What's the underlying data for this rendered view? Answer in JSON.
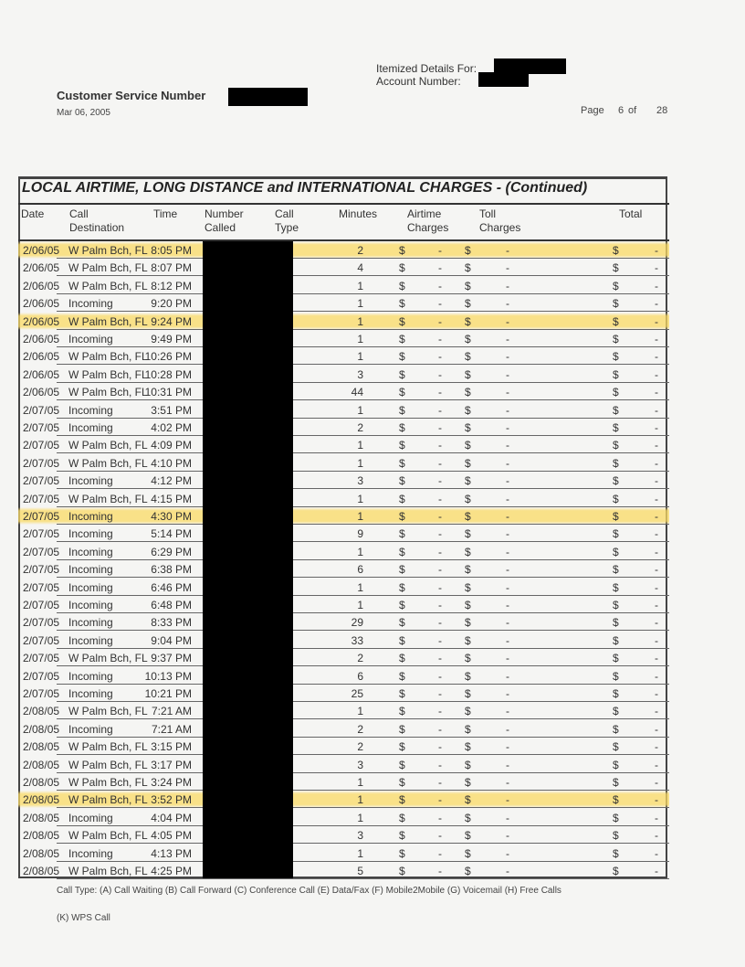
{
  "header": {
    "itemized_label": "Itemized Details For:",
    "account_label": "Account Number:",
    "customer_service_label": "Customer Service Number",
    "date": "Mar 06, 2005",
    "page_label": "Page",
    "page_number": "6",
    "page_of": "of",
    "page_total": "28"
  },
  "section": {
    "title": "LOCAL AIRTIME, LONG DISTANCE and INTERNATIONAL CHARGES  - (Continued)",
    "columns": {
      "date": "Date",
      "dest1": "Call",
      "dest2": "Destination",
      "time": "Time",
      "num1": "Number",
      "num2": "Called",
      "type1": "Call",
      "type2": "Type",
      "minutes": "Minutes",
      "air1": "Airtime",
      "air2": "Charges",
      "toll1": "Toll",
      "toll2": "Charges",
      "total": "Total"
    },
    "currency": "$",
    "dash": "-",
    "highlight_color": "#f9d965",
    "rows": [
      {
        "date": "2/06/05",
        "dest": "W Palm Bch, FL",
        "time": "8:05 PM",
        "minutes": "2",
        "highlighted": true
      },
      {
        "date": "2/06/05",
        "dest": "W Palm Bch, FL",
        "time": "8:07 PM",
        "minutes": "4"
      },
      {
        "date": "2/06/05",
        "dest": "W Palm Bch, FL",
        "time": "8:12 PM",
        "minutes": "1"
      },
      {
        "date": "2/06/05",
        "dest": "Incoming",
        "time": "9:20 PM",
        "minutes": "1"
      },
      {
        "date": "2/06/05",
        "dest": "W Palm Bch, FL",
        "time": "9:24 PM",
        "minutes": "1",
        "highlighted": true
      },
      {
        "date": "2/06/05",
        "dest": "Incoming",
        "time": "9:49 PM",
        "minutes": "1"
      },
      {
        "date": "2/06/05",
        "dest": "W Palm Bch, FL",
        "time": "10:26 PM",
        "minutes": "1"
      },
      {
        "date": "2/06/05",
        "dest": "W Palm Bch, FL",
        "time": "10:28 PM",
        "minutes": "3"
      },
      {
        "date": "2/06/05",
        "dest": "W Palm Bch, FL",
        "time": "10:31 PM",
        "minutes": "44"
      },
      {
        "date": "2/07/05",
        "dest": "Incoming",
        "time": "3:51 PM",
        "minutes": "1"
      },
      {
        "date": "2/07/05",
        "dest": "Incoming",
        "time": "4:02 PM",
        "minutes": "2"
      },
      {
        "date": "2/07/05",
        "dest": "W Palm Bch, FL",
        "time": "4:09 PM",
        "minutes": "1"
      },
      {
        "date": "2/07/05",
        "dest": "W Palm Bch, FL",
        "time": "4:10 PM",
        "minutes": "1"
      },
      {
        "date": "2/07/05",
        "dest": "Incoming",
        "time": "4:12 PM",
        "minutes": "3"
      },
      {
        "date": "2/07/05",
        "dest": "W Palm Bch, FL",
        "time": "4:15 PM",
        "minutes": "1"
      },
      {
        "date": "2/07/05",
        "dest": "Incoming",
        "time": "4:30 PM",
        "minutes": "1",
        "highlighted": true
      },
      {
        "date": "2/07/05",
        "dest": "Incoming",
        "time": "5:14 PM",
        "minutes": "9"
      },
      {
        "date": "2/07/05",
        "dest": "Incoming",
        "time": "6:29 PM",
        "minutes": "1"
      },
      {
        "date": "2/07/05",
        "dest": "Incoming",
        "time": "6:38 PM",
        "minutes": "6"
      },
      {
        "date": "2/07/05",
        "dest": "Incoming",
        "time": "6:46 PM",
        "minutes": "1"
      },
      {
        "date": "2/07/05",
        "dest": "Incoming",
        "time": "6:48 PM",
        "minutes": "1"
      },
      {
        "date": "2/07/05",
        "dest": "Incoming",
        "time": "8:33 PM",
        "minutes": "29"
      },
      {
        "date": "2/07/05",
        "dest": "Incoming",
        "time": "9:04 PM",
        "minutes": "33"
      },
      {
        "date": "2/07/05",
        "dest": "W Palm Bch, FL",
        "time": "9:37 PM",
        "minutes": "2"
      },
      {
        "date": "2/07/05",
        "dest": "Incoming",
        "time": "10:13 PM",
        "minutes": "6"
      },
      {
        "date": "2/07/05",
        "dest": "Incoming",
        "time": "10:21 PM",
        "minutes": "25"
      },
      {
        "date": "2/08/05",
        "dest": "W Palm Bch, FL",
        "time": "7:21 AM",
        "minutes": "1"
      },
      {
        "date": "2/08/05",
        "dest": "Incoming",
        "time": "7:21 AM",
        "minutes": "2"
      },
      {
        "date": "2/08/05",
        "dest": "W Palm Bch, FL",
        "time": "3:15 PM",
        "minutes": "2"
      },
      {
        "date": "2/08/05",
        "dest": "W Palm Bch, FL",
        "time": "3:17 PM",
        "minutes": "3"
      },
      {
        "date": "2/08/05",
        "dest": "W Palm Bch, FL",
        "time": "3:24 PM",
        "minutes": "1"
      },
      {
        "date": "2/08/05",
        "dest": "W Palm Bch, FL",
        "time": "3:52 PM",
        "minutes": "1",
        "highlighted": true
      },
      {
        "date": "2/08/05",
        "dest": "Incoming",
        "time": "4:04 PM",
        "minutes": "1"
      },
      {
        "date": "2/08/05",
        "dest": "W Palm Bch, FL",
        "time": "4:05 PM",
        "minutes": "3"
      },
      {
        "date": "2/08/05",
        "dest": "Incoming",
        "time": "4:13 PM",
        "minutes": "1"
      },
      {
        "date": "2/08/05",
        "dest": "W Palm Bch, FL",
        "time": "4:25 PM",
        "minutes": "5"
      }
    ]
  },
  "footer": {
    "call_types": "Call Type: (A) Call Waiting (B) Call Forward (C) Conference Call (E) Data/Fax (F) Mobile2Mobile (G) Voicemail (H) Free Calls",
    "call_types_2": "(K) WPS Call"
  }
}
